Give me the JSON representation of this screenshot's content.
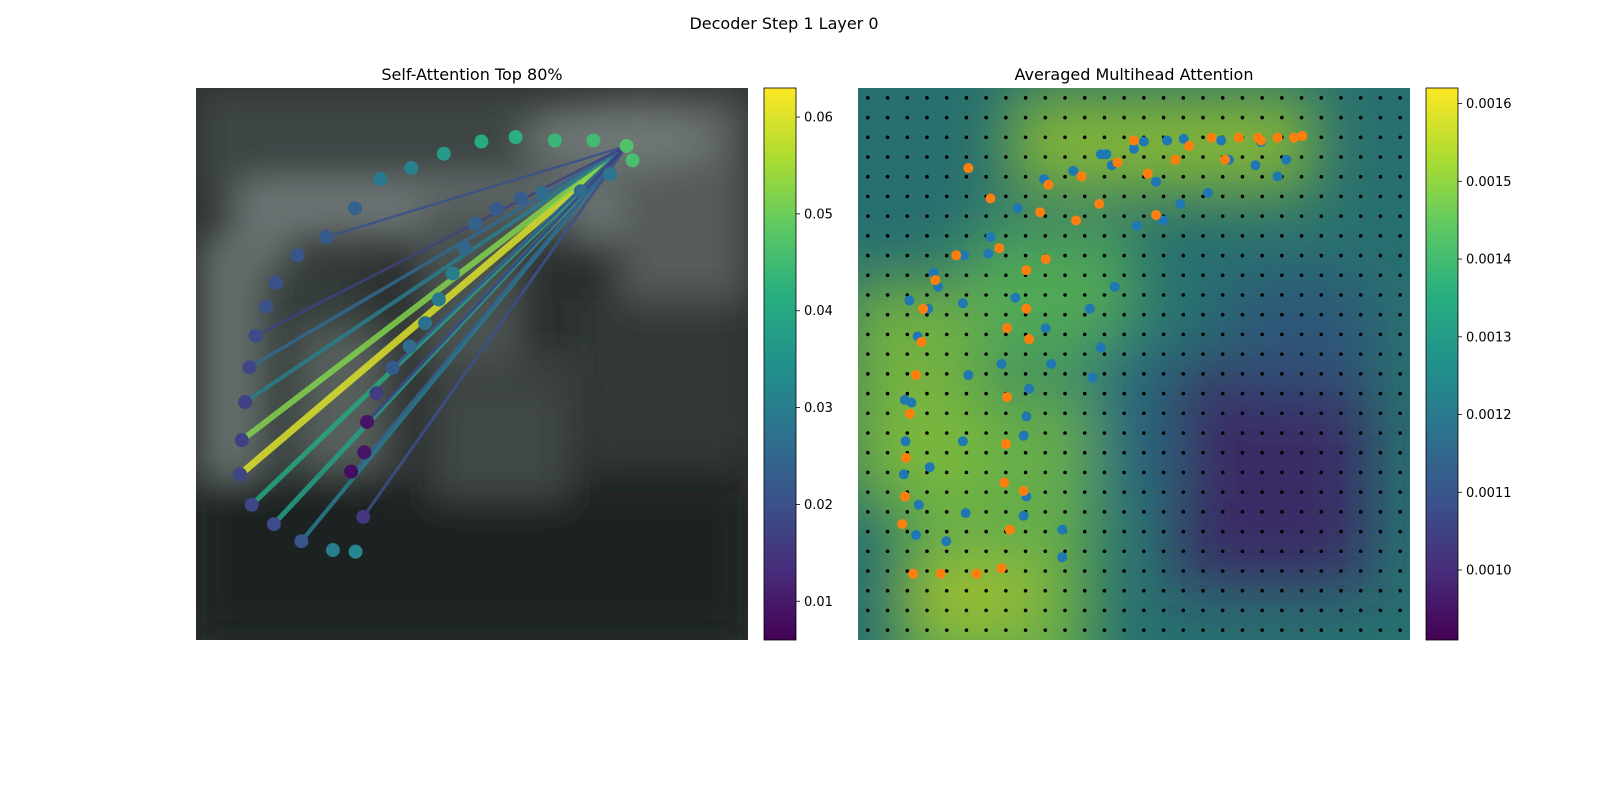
{
  "figure": {
    "suptitle": "Decoder Step 1 Layer 0"
  },
  "chart_data": [
    {
      "type": "scatter",
      "title": "Self-Attention Top 80%",
      "xlabel": "",
      "ylabel": "",
      "xlim": [
        0,
        1
      ],
      "ylim": [
        0,
        1
      ],
      "query_point": [
        0.78,
        0.895
      ],
      "colorbar": {
        "colormap": "viridis",
        "min": 0.006,
        "max": 0.063,
        "ticks": [
          0.01,
          0.02,
          0.03,
          0.04,
          0.05,
          0.06
        ],
        "tick_labels": [
          "0.01",
          "0.02",
          "0.03",
          "0.04",
          "0.05",
          "0.06"
        ]
      },
      "points": [
        {
          "x": 0.78,
          "y": 0.895,
          "v": 0.047
        },
        {
          "x": 0.72,
          "y": 0.905,
          "v": 0.045
        },
        {
          "x": 0.65,
          "y": 0.905,
          "v": 0.044
        },
        {
          "x": 0.579,
          "y": 0.911,
          "v": 0.042
        },
        {
          "x": 0.517,
          "y": 0.903,
          "v": 0.041
        },
        {
          "x": 0.449,
          "y": 0.881,
          "v": 0.037
        },
        {
          "x": 0.39,
          "y": 0.855,
          "v": 0.031
        },
        {
          "x": 0.334,
          "y": 0.835,
          "v": 0.029
        },
        {
          "x": 0.288,
          "y": 0.782,
          "v": 0.024
        },
        {
          "x": 0.236,
          "y": 0.73,
          "v": 0.022
        },
        {
          "x": 0.184,
          "y": 0.697,
          "v": 0.021
        },
        {
          "x": 0.145,
          "y": 0.647,
          "v": 0.02
        },
        {
          "x": 0.127,
          "y": 0.604,
          "v": 0.02
        },
        {
          "x": 0.108,
          "y": 0.551,
          "v": 0.019
        },
        {
          "x": 0.097,
          "y": 0.494,
          "v": 0.018
        },
        {
          "x": 0.089,
          "y": 0.431,
          "v": 0.017
        },
        {
          "x": 0.083,
          "y": 0.362,
          "v": 0.017
        },
        {
          "x": 0.08,
          "y": 0.3,
          "v": 0.018
        },
        {
          "x": 0.101,
          "y": 0.245,
          "v": 0.018
        },
        {
          "x": 0.141,
          "y": 0.21,
          "v": 0.019
        },
        {
          "x": 0.191,
          "y": 0.179,
          "v": 0.021
        },
        {
          "x": 0.248,
          "y": 0.163,
          "v": 0.03
        },
        {
          "x": 0.289,
          "y": 0.16,
          "v": 0.032
        },
        {
          "x": 0.303,
          "y": 0.223,
          "v": 0.015
        },
        {
          "x": 0.281,
          "y": 0.305,
          "v": 0.008
        },
        {
          "x": 0.305,
          "y": 0.34,
          "v": 0.009
        },
        {
          "x": 0.31,
          "y": 0.395,
          "v": 0.009
        },
        {
          "x": 0.327,
          "y": 0.447,
          "v": 0.016
        },
        {
          "x": 0.356,
          "y": 0.493,
          "v": 0.022
        },
        {
          "x": 0.387,
          "y": 0.532,
          "v": 0.026
        },
        {
          "x": 0.415,
          "y": 0.574,
          "v": 0.027
        },
        {
          "x": 0.44,
          "y": 0.617,
          "v": 0.029
        },
        {
          "x": 0.465,
          "y": 0.664,
          "v": 0.03
        },
        {
          "x": 0.487,
          "y": 0.709,
          "v": 0.025
        },
        {
          "x": 0.506,
          "y": 0.754,
          "v": 0.024
        },
        {
          "x": 0.545,
          "y": 0.781,
          "v": 0.022
        },
        {
          "x": 0.589,
          "y": 0.8,
          "v": 0.023
        },
        {
          "x": 0.627,
          "y": 0.81,
          "v": 0.026
        },
        {
          "x": 0.697,
          "y": 0.813,
          "v": 0.026
        },
        {
          "x": 0.75,
          "y": 0.844,
          "v": 0.028
        },
        {
          "x": 0.791,
          "y": 0.869,
          "v": 0.046
        }
      ],
      "lines": [
        {
          "x": 0.08,
          "y": 0.3,
          "v": 0.06,
          "w": 7
        },
        {
          "x": 0.083,
          "y": 0.362,
          "v": 0.052,
          "w": 6
        },
        {
          "x": 0.101,
          "y": 0.245,
          "v": 0.04,
          "w": 5
        },
        {
          "x": 0.141,
          "y": 0.21,
          "v": 0.038,
          "w": 5
        },
        {
          "x": 0.089,
          "y": 0.431,
          "v": 0.03,
          "w": 4
        },
        {
          "x": 0.191,
          "y": 0.179,
          "v": 0.03,
          "w": 4
        },
        {
          "x": 0.287,
          "y": 0.305,
          "v": 0.024,
          "w": 3.5
        },
        {
          "x": 0.097,
          "y": 0.494,
          "v": 0.025,
          "w": 3.5
        },
        {
          "x": 0.303,
          "y": 0.223,
          "v": 0.02,
          "w": 3
        },
        {
          "x": 0.356,
          "y": 0.493,
          "v": 0.02,
          "w": 3
        },
        {
          "x": 0.31,
          "y": 0.395,
          "v": 0.016,
          "w": 3
        },
        {
          "x": 0.236,
          "y": 0.73,
          "v": 0.02,
          "w": 2.5
        },
        {
          "x": 0.108,
          "y": 0.551,
          "v": 0.017,
          "w": 2.5
        }
      ]
    },
    {
      "type": "heatmap",
      "title": "Averaged Multihead Attention",
      "xlabel": "",
      "ylabel": "",
      "xlim": [
        0,
        1
      ],
      "ylim": [
        0,
        1
      ],
      "grid": {
        "rows": 28,
        "cols": 28
      },
      "colorbar": {
        "colormap": "viridis",
        "min": 0.00091,
        "max": 0.00162,
        "ticks": [
          0.001,
          0.0011,
          0.0012,
          0.0013,
          0.0014,
          0.0015,
          0.0016
        ],
        "tick_labels": [
          "0.0010",
          "0.0011",
          "0.0012",
          "0.0013",
          "0.0014",
          "0.0015",
          "0.0016"
        ]
      },
      "heat_regions": [
        {
          "x": 0.25,
          "y": 0.18,
          "w": 0.35,
          "h": 0.55,
          "v": 0.00148
        },
        {
          "x": 0.1,
          "y": 0.45,
          "w": 0.25,
          "h": 0.4,
          "v": 0.0015
        },
        {
          "x": 0.55,
          "y": 0.9,
          "w": 0.55,
          "h": 0.18,
          "v": 0.00152
        },
        {
          "x": 0.35,
          "y": 0.62,
          "w": 0.3,
          "h": 0.25,
          "v": 0.00145
        },
        {
          "x": 0.2,
          "y": 0.08,
          "w": 0.25,
          "h": 0.1,
          "v": 0.00156
        },
        {
          "x": 0.75,
          "y": 0.3,
          "w": 0.35,
          "h": 0.4,
          "v": 0.00098
        },
        {
          "x": 0.8,
          "y": 0.55,
          "w": 0.25,
          "h": 0.2,
          "v": 0.00112
        },
        {
          "x": 0.5,
          "y": 0.4,
          "w": 0.15,
          "h": 0.3,
          "v": 0.00118
        }
      ],
      "series": [
        {
          "name": "",
          "color": "#1f77b4",
          "points": [
            [
              0.105,
              0.19
            ],
            [
              0.11,
              0.245
            ],
            [
              0.13,
              0.313
            ],
            [
              0.16,
              0.179
            ],
            [
              0.195,
              0.23
            ],
            [
              0.19,
              0.36
            ],
            [
              0.2,
              0.48
            ],
            [
              0.26,
              0.5
            ],
            [
              0.285,
              0.62
            ],
            [
              0.37,
              0.15
            ],
            [
              0.37,
              0.2
            ],
            [
              0.3,
              0.225
            ],
            [
              0.305,
              0.26
            ],
            [
              0.3,
              0.37
            ],
            [
              0.305,
              0.405
            ],
            [
              0.31,
              0.455
            ],
            [
              0.35,
              0.5
            ],
            [
              0.34,
              0.565
            ],
            [
              0.42,
              0.6
            ],
            [
              0.425,
              0.475
            ],
            [
              0.44,
              0.53
            ],
            [
              0.465,
              0.64
            ],
            [
              0.505,
              0.75
            ],
            [
              0.553,
              0.76
            ],
            [
              0.54,
              0.83
            ],
            [
              0.584,
              0.79
            ],
            [
              0.634,
              0.81
            ],
            [
              0.672,
              0.87
            ],
            [
              0.658,
              0.905
            ],
            [
              0.73,
              0.902
            ],
            [
              0.76,
              0.84
            ],
            [
              0.776,
              0.87
            ],
            [
              0.72,
              0.86
            ],
            [
              0.5,
              0.89
            ],
            [
              0.45,
              0.88
            ],
            [
              0.39,
              0.85
            ],
            [
              0.337,
              0.835
            ],
            [
              0.289,
              0.782
            ],
            [
              0.24,
              0.73
            ],
            [
              0.192,
              0.697
            ],
            [
              0.145,
              0.64
            ],
            [
              0.127,
              0.6
            ],
            [
              0.108,
              0.55
            ],
            [
              0.097,
              0.43
            ],
            [
              0.086,
              0.36
            ],
            [
              0.083,
              0.3
            ],
            [
              0.085,
              0.435
            ],
            [
              0.093,
              0.615
            ],
            [
              0.137,
              0.665
            ],
            [
              0.19,
              0.61
            ],
            [
              0.236,
              0.7
            ],
            [
              0.56,
              0.905
            ],
            [
              0.518,
              0.903
            ],
            [
              0.59,
              0.908
            ],
            [
              0.46,
              0.86
            ],
            [
              0.44,
              0.88
            ]
          ]
        },
        {
          "name": "",
          "color": "#ff7f0e",
          "points": [
            [
              0.1,
              0.12
            ],
            [
              0.15,
              0.12
            ],
            [
              0.215,
              0.12
            ],
            [
              0.26,
              0.13
            ],
            [
              0.08,
              0.21
            ],
            [
              0.085,
              0.26
            ],
            [
              0.087,
              0.33
            ],
            [
              0.094,
              0.41
            ],
            [
              0.105,
              0.48
            ],
            [
              0.115,
              0.54
            ],
            [
              0.118,
              0.6
            ],
            [
              0.14,
              0.652
            ],
            [
              0.178,
              0.697
            ],
            [
              0.256,
              0.71
            ],
            [
              0.33,
              0.775
            ],
            [
              0.345,
              0.825
            ],
            [
              0.405,
              0.84
            ],
            [
              0.395,
              0.76
            ],
            [
              0.437,
              0.79
            ],
            [
              0.47,
              0.865
            ],
            [
              0.5,
              0.905
            ],
            [
              0.525,
              0.845
            ],
            [
              0.54,
              0.77
            ],
            [
              0.575,
              0.87
            ],
            [
              0.6,
              0.895
            ],
            [
              0.64,
              0.91
            ],
            [
              0.665,
              0.87
            ],
            [
              0.69,
              0.91
            ],
            [
              0.725,
              0.91
            ],
            [
              0.76,
              0.91
            ],
            [
              0.79,
              0.91
            ],
            [
              0.805,
              0.913
            ],
            [
              0.73,
              0.905
            ],
            [
              0.31,
              0.545
            ],
            [
              0.305,
              0.6
            ],
            [
              0.27,
              0.565
            ],
            [
              0.27,
              0.44
            ],
            [
              0.268,
              0.355
            ],
            [
              0.265,
              0.285
            ],
            [
              0.275,
              0.2
            ],
            [
              0.305,
              0.67
            ],
            [
              0.34,
              0.69
            ],
            [
              0.3,
              0.27
            ],
            [
              0.2,
              0.855
            ],
            [
              0.24,
              0.8
            ]
          ]
        }
      ]
    }
  ]
}
